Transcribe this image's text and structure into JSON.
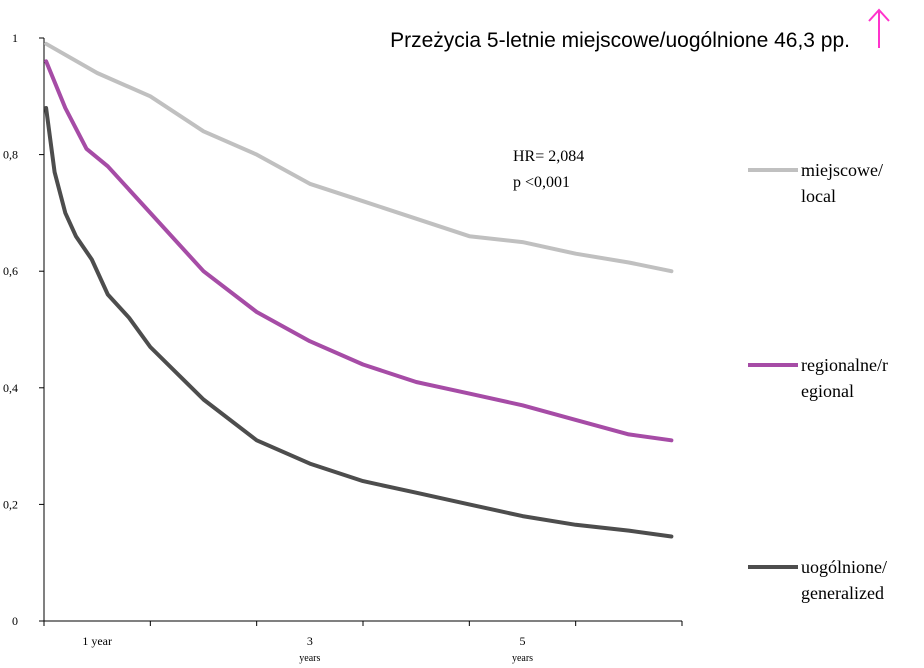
{
  "chart_data": {
    "type": "line",
    "title": "Przeżycia 5-letnie  miejscowe/uogólnione 46,3 pp.",
    "title_icon": "up-arrow-icon",
    "title_icon_color": "#ff33cc",
    "xlim": [
      0,
      6
    ],
    "ylim": [
      0,
      1
    ],
    "y_ticks": [
      {
        "value": 0,
        "label": "0"
      },
      {
        "value": 0.2,
        "label": "0,2"
      },
      {
        "value": 0.4,
        "label": "0,4"
      },
      {
        "value": 0.6,
        "label": "0,6"
      },
      {
        "value": 0.8,
        "label": "0,8"
      },
      {
        "value": 1,
        "label": "1"
      }
    ],
    "x_tick_marks": [
      0,
      1,
      2,
      3,
      4,
      5,
      6
    ],
    "x_tick_labels": [
      {
        "value": 1,
        "label": "1 year",
        "sub": ""
      },
      {
        "value": 3,
        "label": "3",
        "sub": "years"
      },
      {
        "value": 5,
        "label": "5",
        "sub": "years"
      }
    ],
    "annotations": [
      "HR= 2,084",
      "p <0,001"
    ],
    "legend_position": "right",
    "grid": false,
    "series": [
      {
        "name": "miejscowe/\nlocal",
        "legend_lines": [
          "miejscowe/",
          "local"
        ],
        "color": "#c0c0c0",
        "x": [
          0.02,
          0.5,
          1.0,
          1.5,
          2.0,
          2.5,
          3.0,
          3.5,
          4.0,
          4.5,
          5.0,
          5.5,
          5.9
        ],
        "y": [
          0.99,
          0.94,
          0.9,
          0.84,
          0.8,
          0.75,
          0.72,
          0.69,
          0.66,
          0.65,
          0.63,
          0.615,
          0.6
        ]
      },
      {
        "name": "regionalne/r\negional",
        "legend_lines": [
          "regionalne/r",
          "egional"
        ],
        "color": "#a64ca6",
        "x": [
          0.02,
          0.2,
          0.4,
          0.6,
          1.0,
          1.5,
          2.0,
          2.5,
          3.0,
          3.5,
          4.0,
          4.5,
          5.0,
          5.5,
          5.9
        ],
        "y": [
          0.96,
          0.88,
          0.81,
          0.78,
          0.7,
          0.6,
          0.53,
          0.48,
          0.44,
          0.41,
          0.39,
          0.37,
          0.345,
          0.32,
          0.31
        ]
      },
      {
        "name": "uogólnione/\ngeneralized",
        "legend_lines": [
          "uogólnione/",
          "generalized"
        ],
        "color": "#4d4d4d",
        "x": [
          0.02,
          0.1,
          0.2,
          0.3,
          0.45,
          0.6,
          0.8,
          1.0,
          1.5,
          2.0,
          2.5,
          3.0,
          3.5,
          4.0,
          4.5,
          5.0,
          5.5,
          5.9
        ],
        "y": [
          0.88,
          0.77,
          0.7,
          0.66,
          0.62,
          0.56,
          0.52,
          0.47,
          0.38,
          0.31,
          0.27,
          0.24,
          0.22,
          0.2,
          0.18,
          0.165,
          0.155,
          0.145
        ]
      }
    ]
  }
}
